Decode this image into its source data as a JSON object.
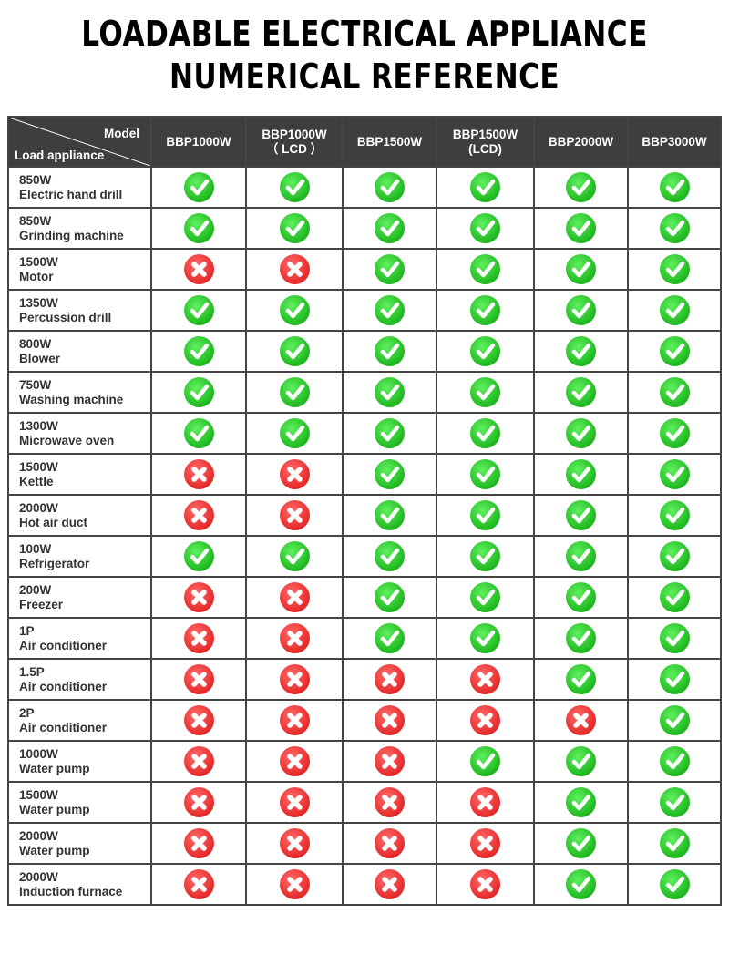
{
  "title_line1": "LOADABLE ELECTRICAL APPLIANCE",
  "title_line2": "NUMERICAL REFERENCE",
  "header": {
    "model": "Model",
    "load": "Load appliance"
  },
  "models": [
    [
      "BBP1000W",
      ""
    ],
    [
      "BBP1000W",
      "（ LCD ）"
    ],
    [
      "BBP1500W",
      ""
    ],
    [
      "BBP1500W",
      "(LCD)"
    ],
    [
      "BBP2000W",
      ""
    ],
    [
      "BBP3000W",
      ""
    ]
  ],
  "colors": {
    "yes": "#22c022",
    "no": "#e52a2a",
    "header_bg": "#3e3e3e"
  },
  "icons": {
    "yes": "check-circle-icon",
    "no": "x-circle-icon"
  },
  "rows": [
    {
      "power": "850W",
      "name": "Electric hand drill",
      "support": [
        "yes",
        "yes",
        "yes",
        "yes",
        "yes",
        "yes"
      ]
    },
    {
      "power": "850W",
      "name": "Grinding machine",
      "support": [
        "yes",
        "yes",
        "yes",
        "yes",
        "yes",
        "yes"
      ]
    },
    {
      "power": "1500W",
      "name": "Motor",
      "support": [
        "no",
        "no",
        "yes",
        "yes",
        "yes",
        "yes"
      ]
    },
    {
      "power": "1350W",
      "name": "Percussion drill",
      "support": [
        "yes",
        "yes",
        "yes",
        "yes",
        "yes",
        "yes"
      ]
    },
    {
      "power": "800W",
      "name": "Blower",
      "support": [
        "yes",
        "yes",
        "yes",
        "yes",
        "yes",
        "yes"
      ]
    },
    {
      "power": "750W",
      "name": "Washing machine",
      "support": [
        "yes",
        "yes",
        "yes",
        "yes",
        "yes",
        "yes"
      ]
    },
    {
      "power": "1300W",
      "name": "Microwave oven",
      "support": [
        "yes",
        "yes",
        "yes",
        "yes",
        "yes",
        "yes"
      ]
    },
    {
      "power": "1500W",
      "name": "Kettle",
      "support": [
        "no",
        "no",
        "yes",
        "yes",
        "yes",
        "yes"
      ]
    },
    {
      "power": "2000W",
      "name": "Hot air duct",
      "support": [
        "no",
        "no",
        "yes",
        "yes",
        "yes",
        "yes"
      ]
    },
    {
      "power": "100W",
      "name": "Refrigerator",
      "support": [
        "yes",
        "yes",
        "yes",
        "yes",
        "yes",
        "yes"
      ]
    },
    {
      "power": "200W",
      "name": "Freezer",
      "support": [
        "no",
        "no",
        "yes",
        "yes",
        "yes",
        "yes"
      ]
    },
    {
      "power": "1P",
      "name": "Air conditioner",
      "support": [
        "no",
        "no",
        "yes",
        "yes",
        "yes",
        "yes"
      ]
    },
    {
      "power": "1.5P",
      "name": "Air conditioner",
      "support": [
        "no",
        "no",
        "no",
        "no",
        "yes",
        "yes"
      ]
    },
    {
      "power": "2P",
      "name": "Air conditioner",
      "support": [
        "no",
        "no",
        "no",
        "no",
        "no",
        "yes"
      ]
    },
    {
      "power": "1000W",
      "name": "Water pump",
      "support": [
        "no",
        "no",
        "no",
        "yes",
        "yes",
        "yes"
      ]
    },
    {
      "power": "1500W",
      "name": "Water pump",
      "support": [
        "no",
        "no",
        "no",
        "no",
        "yes",
        "yes"
      ]
    },
    {
      "power": "2000W",
      "name": "Water pump",
      "support": [
        "no",
        "no",
        "no",
        "no",
        "yes",
        "yes"
      ]
    },
    {
      "power": "2000W",
      "name": "Induction furnace",
      "support": [
        "no",
        "no",
        "no",
        "no",
        "yes",
        "yes"
      ]
    }
  ]
}
